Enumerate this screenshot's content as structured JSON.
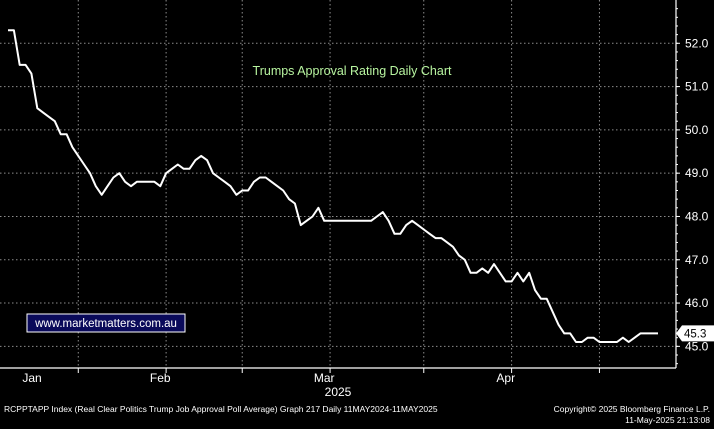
{
  "chart_data": {
    "type": "line",
    "title": "Trumps Approval Rating Daily Chart",
    "watermark": "www.marketmatters.com.au",
    "xlabel": "2025",
    "ylabel": "",
    "ylim": [
      44.5,
      53.0
    ],
    "y_ticks": [
      45.0,
      46.0,
      47.0,
      48.0,
      49.0,
      50.0,
      51.0,
      52.0
    ],
    "x_ticks": [
      "Jan",
      "Feb",
      "Mar",
      "Apr"
    ],
    "grid": true,
    "last_value_label": "45.3",
    "series": [
      {
        "color": "#ffffff",
        "x": [
          "2025-01-20",
          "2025-01-21",
          "2025-01-22",
          "2025-01-23",
          "2025-01-24",
          "2025-01-25",
          "2025-01-26",
          "2025-01-27",
          "2025-01-28",
          "2025-01-29",
          "2025-01-30",
          "2025-01-31",
          "2025-02-01",
          "2025-02-02",
          "2025-02-03",
          "2025-02-04",
          "2025-02-05",
          "2025-02-06",
          "2025-02-07",
          "2025-02-08",
          "2025-02-09",
          "2025-02-10",
          "2025-02-11",
          "2025-02-12",
          "2025-02-13",
          "2025-02-14",
          "2025-02-15",
          "2025-02-16",
          "2025-02-17",
          "2025-02-18",
          "2025-02-19",
          "2025-02-20",
          "2025-02-21",
          "2025-02-22",
          "2025-02-23",
          "2025-02-24",
          "2025-02-25",
          "2025-02-26",
          "2025-02-27",
          "2025-02-28",
          "2025-03-01",
          "2025-03-02",
          "2025-03-03",
          "2025-03-04",
          "2025-03-05",
          "2025-03-06",
          "2025-03-07",
          "2025-03-08",
          "2025-03-09",
          "2025-03-10",
          "2025-03-11",
          "2025-03-12",
          "2025-03-13",
          "2025-03-14",
          "2025-03-15",
          "2025-03-16",
          "2025-03-17",
          "2025-03-18",
          "2025-03-19",
          "2025-03-20",
          "2025-03-21",
          "2025-03-22",
          "2025-03-23",
          "2025-03-24",
          "2025-03-25",
          "2025-03-26",
          "2025-03-27",
          "2025-03-28",
          "2025-03-29",
          "2025-03-30",
          "2025-03-31",
          "2025-04-01",
          "2025-04-02",
          "2025-04-03",
          "2025-04-04",
          "2025-04-05",
          "2025-04-06",
          "2025-04-07",
          "2025-04-08",
          "2025-04-09",
          "2025-04-10",
          "2025-04-11",
          "2025-04-12",
          "2025-04-13",
          "2025-04-14",
          "2025-04-15",
          "2025-04-16",
          "2025-04-17",
          "2025-04-18",
          "2025-04-19",
          "2025-04-20",
          "2025-04-21",
          "2025-04-22",
          "2025-04-23",
          "2025-04-24",
          "2025-04-25",
          "2025-04-26",
          "2025-04-27",
          "2025-04-28",
          "2025-04-29",
          "2025-04-30",
          "2025-05-01",
          "2025-05-02",
          "2025-05-03",
          "2025-05-04",
          "2025-05-05",
          "2025-05-06",
          "2025-05-07",
          "2025-05-08",
          "2025-05-09",
          "2025-05-10",
          "2025-05-11"
        ],
        "values": [
          52.3,
          52.3,
          51.5,
          51.5,
          51.3,
          50.5,
          50.4,
          50.3,
          50.2,
          49.9,
          49.9,
          49.6,
          49.4,
          49.2,
          49.0,
          48.7,
          48.5,
          48.7,
          48.9,
          49.0,
          48.8,
          48.7,
          48.8,
          48.8,
          48.8,
          48.8,
          48.7,
          49.0,
          49.1,
          49.2,
          49.1,
          49.1,
          49.3,
          49.4,
          49.3,
          49.0,
          48.9,
          48.8,
          48.7,
          48.5,
          48.6,
          48.6,
          48.8,
          48.9,
          48.9,
          48.8,
          48.7,
          48.6,
          48.4,
          48.3,
          47.8,
          47.9,
          48.0,
          48.2,
          47.9,
          47.9,
          47.9,
          47.9,
          47.9,
          47.9,
          47.9,
          47.9,
          47.9,
          48.0,
          48.1,
          47.9,
          47.6,
          47.6,
          47.8,
          47.9,
          47.8,
          47.7,
          47.6,
          47.5,
          47.5,
          47.4,
          47.3,
          47.1,
          47.0,
          46.7,
          46.7,
          46.8,
          46.7,
          46.9,
          46.7,
          46.5,
          46.5,
          46.7,
          46.5,
          46.7,
          46.3,
          46.1,
          46.1,
          45.8,
          45.5,
          45.3,
          45.3,
          45.1,
          45.1,
          45.2,
          45.2,
          45.1,
          45.1,
          45.1,
          45.1,
          45.2,
          45.1,
          45.2,
          45.3,
          45.3,
          45.3,
          45.3
        ]
      }
    ],
    "footer_left": "RCPPTAPP Index (Real Clear Politics Trump Job Approval Poll Average) Graph 217  Daily 11MAY2024-11MAY2025",
    "footer_right_1": "Copyright© 2025 Bloomberg Finance L.P.",
    "footer_right_2": "11-May-2025 21:13:08"
  }
}
